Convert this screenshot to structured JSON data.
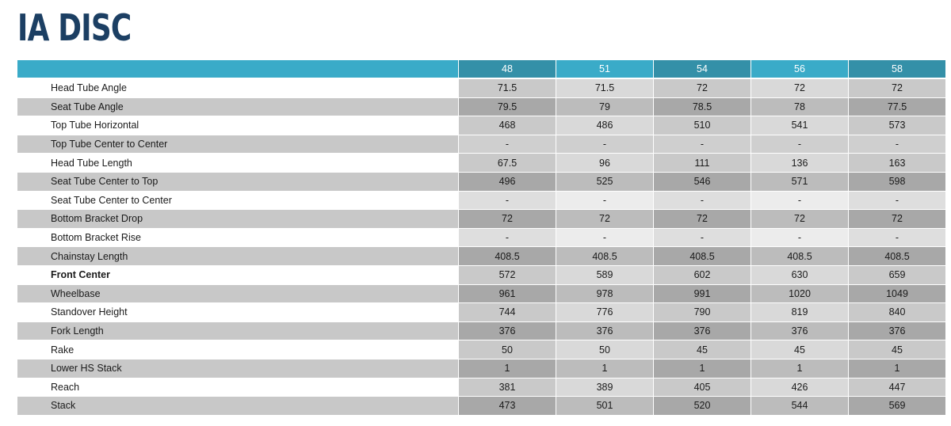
{
  "title": "IA DISC",
  "table": {
    "sizes": [
      "48",
      "51",
      "54",
      "56",
      "58"
    ],
    "rows": [
      {
        "label": "Head Tube Angle",
        "values": [
          "71.5",
          "71.5",
          "72",
          "72",
          "72"
        ]
      },
      {
        "label": "Seat Tube Angle",
        "values": [
          "79.5",
          "79",
          "78.5",
          "78",
          "77.5"
        ]
      },
      {
        "label": "Top Tube Horizontal",
        "values": [
          "468",
          "486",
          "510",
          "541",
          "573"
        ]
      },
      {
        "label": "Top Tube Center to Center",
        "values": [
          "-",
          "-",
          "-",
          "-",
          "-"
        ]
      },
      {
        "label": "Head Tube Length",
        "values": [
          "67.5",
          "96",
          "111",
          "136",
          "163"
        ]
      },
      {
        "label": "Seat Tube Center to Top",
        "values": [
          "496",
          "525",
          "546",
          "571",
          "598"
        ]
      },
      {
        "label": "Seat Tube Center to Center",
        "values": [
          "-",
          "-",
          "-",
          "-",
          "-"
        ]
      },
      {
        "label": "Bottom Bracket Drop",
        "values": [
          "72",
          "72",
          "72",
          "72",
          "72"
        ]
      },
      {
        "label": "Bottom Bracket Rise",
        "values": [
          "-",
          "-",
          "-",
          "-",
          "-"
        ]
      },
      {
        "label": "Chainstay Length",
        "values": [
          "408.5",
          "408.5",
          "408.5",
          "408.5",
          "408.5"
        ]
      },
      {
        "label": "Front Center",
        "values": [
          "572",
          "589",
          "602",
          "630",
          "659"
        ]
      },
      {
        "label": "Wheelbase",
        "values": [
          "961",
          "978",
          "991",
          "1020",
          "1049"
        ]
      },
      {
        "label": "Standover Height",
        "values": [
          "744",
          "776",
          "790",
          "819",
          "840"
        ]
      },
      {
        "label": "Fork Length",
        "values": [
          "376",
          "376",
          "376",
          "376",
          "376"
        ]
      },
      {
        "label": "Rake",
        "values": [
          "50",
          "50",
          "45",
          "45",
          "45"
        ]
      },
      {
        "label": "Lower HS Stack",
        "values": [
          "1",
          "1",
          "1",
          "1",
          "1"
        ]
      },
      {
        "label": "Reach",
        "values": [
          "381",
          "389",
          "405",
          "426",
          "447"
        ]
      },
      {
        "label": "Stack",
        "values": [
          "473",
          "501",
          "520",
          "544",
          "569"
        ]
      }
    ]
  },
  "colors": {
    "title": "#1c3f63",
    "header": "#3aabc8",
    "header_highlight": "#3490a8"
  }
}
